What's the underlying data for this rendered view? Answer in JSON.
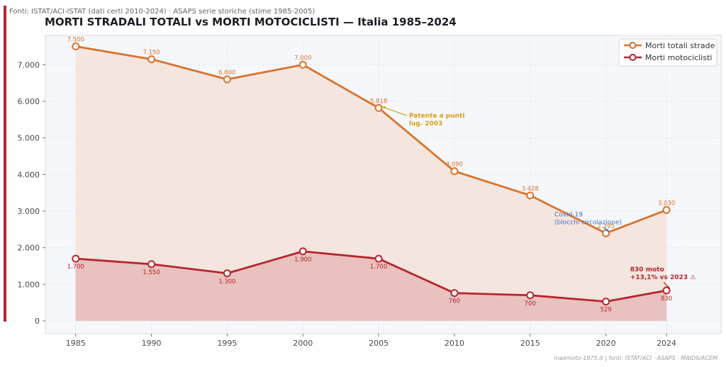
{
  "header": {
    "source_note": "Fonti: ISTAT/ACI-ISTAT (dati certi 2010-2024) · ASAPS serie storiche (stime 1985-2005)",
    "title": "MORTI STRADALI TOTALI vs MORTI MOTOCICLISTI — Italia 1985–2024"
  },
  "footer": {
    "credit": "maxmoto-1975.it  |  fonti: ISTAT/ACI · ASAPS · MAIDS/ACEM"
  },
  "colors": {
    "accent": "#b5262e",
    "total": "#d9732e",
    "moto": "#b5262e",
    "total_fill": "#f3e4dc",
    "moto_fill": "#e8bfbd",
    "plot_bg": "#f5f7fa",
    "annotation_patente": "#d4a017",
    "annotation_covid": "#4472c4",
    "annotation_moto": "#b5262e"
  },
  "chart_data": {
    "type": "line",
    "x": [
      1985,
      1990,
      1995,
      2000,
      2005,
      2010,
      2015,
      2020,
      2024
    ],
    "series": [
      {
        "name": "Morti totali strade",
        "values": [
          7500,
          7150,
          6600,
          7000,
          5818,
          4090,
          3428,
          2395,
          3030
        ],
        "labels": [
          "7.500",
          "7.150",
          "6.600",
          "7.000",
          "5.818",
          "4.090",
          "3.428",
          "2.395",
          "3.030"
        ]
      },
      {
        "name": "Morti motociclisti",
        "values": [
          1700,
          1550,
          1300,
          1900,
          1700,
          760,
          700,
          529,
          830
        ],
        "labels": [
          "1.700",
          "1.550",
          "1.300",
          "1.900",
          "1.700",
          "760",
          "700",
          "529",
          "830"
        ]
      }
    ],
    "ylim": [
      -350,
      7800
    ],
    "xlim": [
      1983,
      2027.6
    ],
    "y_ticks": [
      0,
      1000,
      2000,
      3000,
      4000,
      5000,
      6000,
      7000
    ],
    "y_tick_labels": [
      "0",
      "1.000",
      "2.000",
      "3.000",
      "4.000",
      "5.000",
      "6.000",
      "7.000"
    ],
    "x_ticks": [
      1985,
      1990,
      1995,
      2000,
      2005,
      2010,
      2015,
      2020,
      2024
    ],
    "x_tick_labels": [
      "1985",
      "1990",
      "1995",
      "2000",
      "2005",
      "2010",
      "2015",
      "2020",
      "2024"
    ],
    "grid": true,
    "legend_position": "top-right",
    "annotations": [
      {
        "lines": [
          "Patente a punti",
          "lug. 2003"
        ],
        "target": [
          2005,
          5818
        ],
        "text_at": [
          2007,
          5550
        ],
        "color_key": "annotation_patente",
        "bold": true
      },
      {
        "lines": [
          "Covid-19",
          "(blocchi circolazione)"
        ],
        "target": [
          2020,
          2395
        ],
        "text_at": [
          2016.6,
          2850
        ],
        "color_key": "annotation_covid",
        "bold": false
      },
      {
        "lines": [
          "830 moto",
          "+13,1% vs 2023 ⚠"
        ],
        "target": [
          2024,
          830
        ],
        "text_at": [
          2021.6,
          1350
        ],
        "color_key": "annotation_moto",
        "bold": true
      }
    ]
  }
}
